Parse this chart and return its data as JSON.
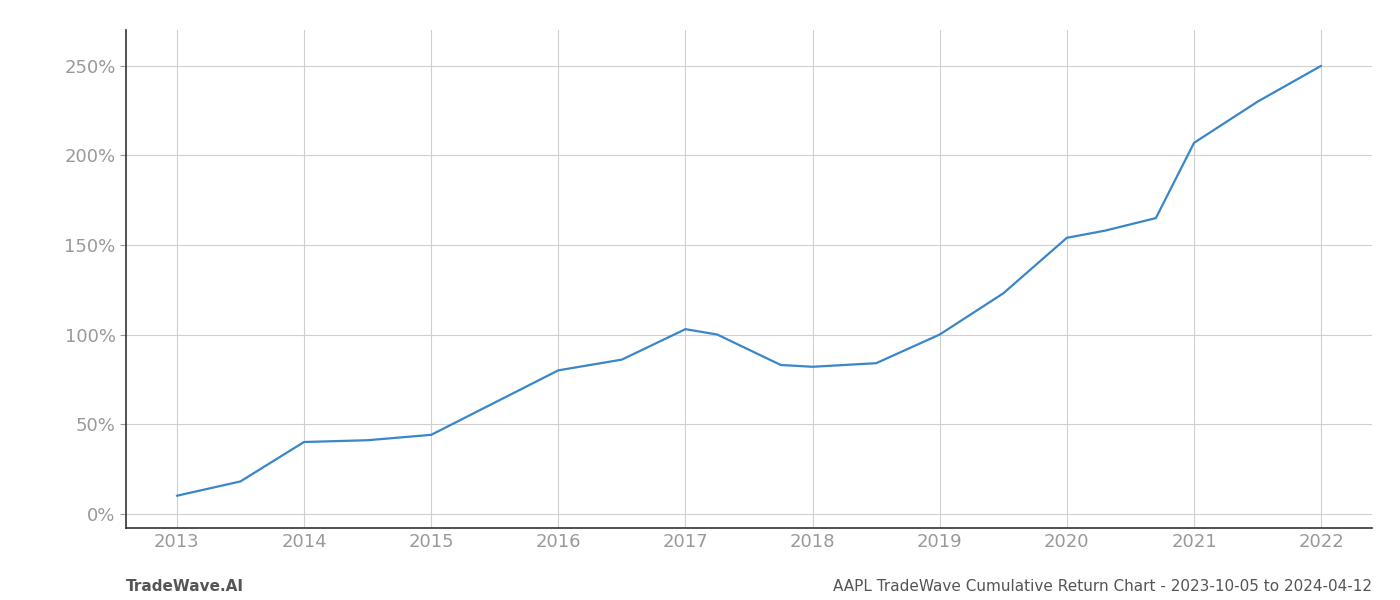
{
  "x_values": [
    2013,
    2013.5,
    2014,
    2014.5,
    2015,
    2015.5,
    2016,
    2016.5,
    2017,
    2017.25,
    2017.75,
    2018,
    2018.5,
    2019,
    2019.5,
    2020,
    2020.3,
    2020.7,
    2021,
    2021.5,
    2022
  ],
  "y_values": [
    10,
    18,
    40,
    41,
    44,
    62,
    80,
    86,
    103,
    100,
    83,
    82,
    84,
    100,
    123,
    154,
    158,
    165,
    207,
    230,
    250
  ],
  "line_color": "#3a86c8",
  "line_width": 1.6,
  "background_color": "#ffffff",
  "grid_color": "#d0d0d0",
  "x_ticks": [
    2013,
    2014,
    2015,
    2016,
    2017,
    2018,
    2019,
    2020,
    2021,
    2022
  ],
  "y_ticks": [
    0,
    50,
    100,
    150,
    200,
    250
  ],
  "y_tick_labels": [
    "0%",
    "50%",
    "100%",
    "150%",
    "200%",
    "250%"
  ],
  "xlim": [
    2012.6,
    2022.4
  ],
  "ylim": [
    -8,
    270
  ],
  "footer_left": "TradeWave.AI",
  "footer_right": "AAPL TradeWave Cumulative Return Chart - 2023-10-05 to 2024-04-12",
  "tick_label_color": "#999999",
  "footer_color": "#555555",
  "left_spine_color": "#333333",
  "bottom_spine_color": "#333333"
}
